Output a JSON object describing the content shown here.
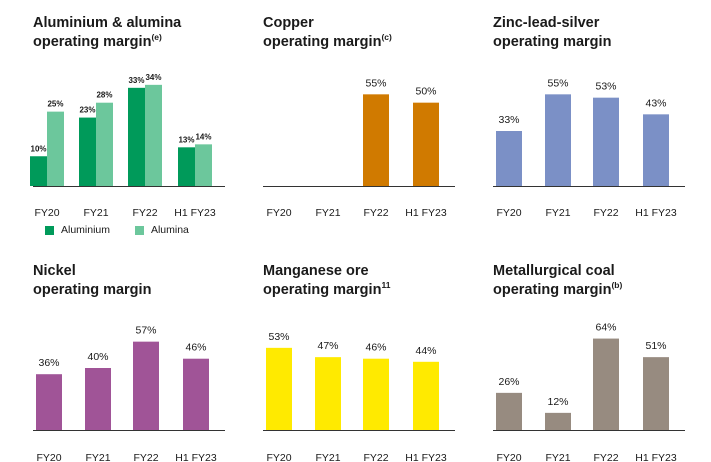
{
  "colors": {
    "aluminium": "#009a5a",
    "alumina": "#6cc79c",
    "copper": "#d07a00",
    "zinc": "#7b90c6",
    "nickel": "#a05497",
    "manganese": "#ffea00",
    "coal": "#978b80",
    "axis": "#333333"
  },
  "panels": {
    "aluminium": {
      "title_line1": "Aluminium & alumina",
      "title_line2": "operating margin",
      "note": "(e)",
      "legend": [
        "Aluminium",
        "Alumina"
      ]
    },
    "copper": {
      "title_line1": "Copper",
      "title_line2": "operating margin",
      "note": "(c)"
    },
    "zinc": {
      "title_line1": "Zinc-lead-silver",
      "title_line2": "operating margin",
      "note": ""
    },
    "nickel": {
      "title_line1": "Nickel",
      "title_line2": "operating margin",
      "note": ""
    },
    "manganese": {
      "title_line1": "Manganese ore",
      "title_line2": "operating margin",
      "note": "11"
    },
    "coal": {
      "title_line1": "Metallurgical coal",
      "title_line2": "operating margin",
      "note": "(b)"
    }
  },
  "chart_data": [
    {
      "id": "aluminium",
      "type": "bar",
      "title": "Aluminium & alumina operating margin(e)",
      "categories": [
        "FY20",
        "FY21",
        "FY22",
        "H1 FY23"
      ],
      "series": [
        {
          "name": "Aluminium",
          "values": [
            10,
            23,
            33,
            13
          ],
          "labels": [
            "10%",
            "23%",
            "33%",
            "13%"
          ]
        },
        {
          "name": "Alumina",
          "values": [
            25,
            28,
            34,
            14
          ],
          "labels": [
            "25%",
            "28%",
            "34%",
            "14%"
          ]
        }
      ],
      "ylim": [
        0,
        40
      ],
      "legend": "bottom"
    },
    {
      "id": "copper",
      "type": "bar",
      "title": "Copper operating margin(c)",
      "categories": [
        "FY20",
        "FY21",
        "FY22",
        "H1 FY23"
      ],
      "series": [
        {
          "values": [
            null,
            null,
            55,
            50
          ],
          "labels": [
            "",
            "",
            "55%",
            "50%"
          ]
        }
      ],
      "ylim": [
        0,
        60
      ]
    },
    {
      "id": "zinc",
      "type": "bar",
      "title": "Zinc-lead-silver operating margin",
      "categories": [
        "FY20",
        "FY21",
        "FY22",
        "H1 FY23"
      ],
      "series": [
        {
          "values": [
            33,
            55,
            53,
            43
          ],
          "labels": [
            "33%",
            "55%",
            "53%",
            "43%"
          ]
        }
      ],
      "ylim": [
        0,
        60
      ]
    },
    {
      "id": "nickel",
      "type": "bar",
      "title": "Nickel operating margin",
      "categories": [
        "FY20",
        "FY21",
        "FY22",
        "H1 FY23"
      ],
      "series": [
        {
          "values": [
            36,
            40,
            57,
            46
          ],
          "labels": [
            "36%",
            "40%",
            "57%",
            "46%"
          ]
        }
      ],
      "ylim": [
        0,
        60
      ]
    },
    {
      "id": "manganese",
      "type": "bar",
      "title": "Manganese ore operating margin11",
      "categories": [
        "FY20",
        "FY21",
        "FY22",
        "H1 FY23"
      ],
      "series": [
        {
          "values": [
            53,
            47,
            46,
            44
          ],
          "labels": [
            "53%",
            "47%",
            "46%",
            "44%"
          ]
        }
      ],
      "ylim": [
        0,
        60
      ]
    },
    {
      "id": "coal",
      "type": "bar",
      "title": "Metallurgical coal operating margin(b)",
      "categories": [
        "FY20",
        "FY21",
        "FY22",
        "H1 FY23"
      ],
      "series": [
        {
          "values": [
            26,
            12,
            64,
            51
          ],
          "labels": [
            "26%",
            "12%",
            "64%",
            "51%"
          ]
        }
      ],
      "ylim": [
        0,
        70
      ]
    }
  ]
}
